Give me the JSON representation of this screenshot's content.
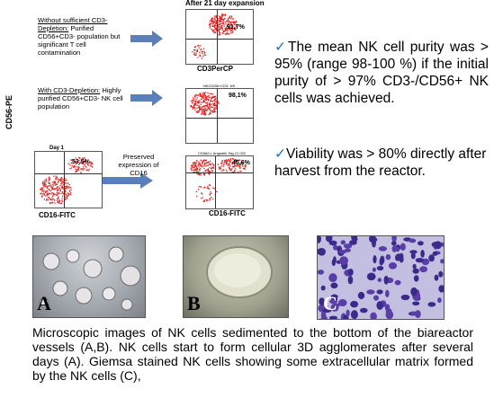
{
  "flow": {
    "header": "After  21 day expansion",
    "ylabel": "CD56-PE",
    "xlabel_left": "CD16-FITC",
    "xlabel_right": "CD16-FITC",
    "top_xlabel": "CD3PerCP",
    "row1_text_title": "Without sufficient CD3-Depletion:",
    "row1_text_body": "Purified CD56+CD3- population but significant T cell contamination",
    "row2_text_title": "With CD3-Depletion:",
    "row2_text_body": "Highly purified CD56+CD3- NK cell population",
    "day_label": "Day 1",
    "preserved_text": "Preserved expression of CD16",
    "pct_top": "91,7%",
    "pct_mid": "98,1%",
    "pct_day1": "53,5%",
    "pct_bottom": "45,6%",
    "mid_plot_title": "NK/CD56+CD3- NK",
    "bottom_plot_title": "CD56/Lt. Angiotrik Tag 21 002"
  },
  "bullets": {
    "b1": "The mean NK cell purity was > 95% (range 98-100 %) if the initial purity of > 97% CD3-/CD56+ NK cells was achieved.",
    "b2": "Viability was > 80% directly after harvest from the reactor."
  },
  "photos": {
    "a": "A",
    "b": "B",
    "c": "C"
  },
  "caption": "Microscopic images of NK cells sedimented to the bottom of the biareactor vessels (A,B). NK cells start to form cellular 3D agglomerates after several days (A). Giemsa stained NK cells showing some extracellular matrix formed by the NK cells (C),",
  "colors": {
    "dots": "#e02020",
    "arrow": "#5b7fb8",
    "check": "#2a72b5"
  }
}
